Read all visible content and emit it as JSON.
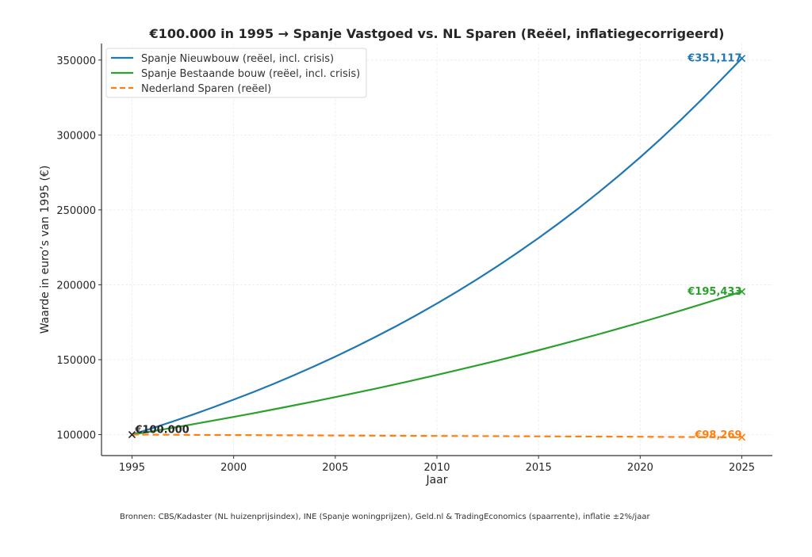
{
  "chart_data": {
    "type": "line",
    "title": "€100.000 in 1995 → Spanje Vastgoed vs. NL Sparen (Reëel, inflatiegecorrigeerd)",
    "xlabel": "Jaar",
    "ylabel": "Waarde in euro’s van 1995 (€)",
    "xlim": [
      1993.5,
      2026.5
    ],
    "ylim": [
      86000,
      361000
    ],
    "xticks": [
      1995,
      2000,
      2005,
      2010,
      2015,
      2020,
      2025
    ],
    "yticks": [
      100000,
      150000,
      200000,
      250000,
      300000,
      350000
    ],
    "xtick_labels": [
      "1995",
      "2000",
      "2005",
      "2010",
      "2015",
      "2020",
      "2025"
    ],
    "ytick_labels": [
      "100000",
      "150000",
      "200000",
      "250000",
      "300000",
      "350000"
    ],
    "grid": true,
    "legend_position": "top-left",
    "x": [
      1995,
      1996,
      1997,
      1998,
      1999,
      2000,
      2001,
      2002,
      2003,
      2004,
      2005,
      2006,
      2007,
      2008,
      2009,
      2010,
      2011,
      2012,
      2013,
      2014,
      2015,
      2016,
      2017,
      2018,
      2019,
      2020,
      2021,
      2022,
      2023,
      2024,
      2025
    ],
    "series": [
      {
        "name": "Spanje Nieuwbouw (reëel, incl. crisis)",
        "color": "#1f77b4",
        "style": "solid",
        "values": [
          100000,
          104280,
          108744,
          113398,
          118252,
          123313,
          128591,
          134095,
          139834,
          145819,
          152060,
          158568,
          165355,
          172432,
          179812,
          187508,
          195534,
          203903,
          212630,
          221730,
          231221,
          241117,
          251437,
          262199,
          273421,
          285124,
          297327,
          310053,
          323324,
          337162,
          351117
        ]
      },
      {
        "name": "Spanje Bestaande bouw (reëel, incl. crisis)",
        "color": "#2ca02c",
        "style": "solid",
        "values": [
          100000,
          102260,
          104571,
          106934,
          109351,
          111823,
          114350,
          116934,
          119577,
          122279,
          125043,
          127869,
          130759,
          133714,
          136736,
          139826,
          142986,
          146218,
          149522,
          152902,
          156357,
          159891,
          163505,
          167200,
          170978,
          174843,
          178794,
          182835,
          186967,
          191193,
          195433
        ]
      },
      {
        "name": "Nederland Sparen (reëel)",
        "color": "#ff7f0e",
        "style": "dashed",
        "values": [
          100000,
          99942,
          99884,
          99826,
          99768,
          99710,
          99652,
          99594,
          99537,
          99479,
          99421,
          99364,
          99306,
          99249,
          99191,
          99134,
          99076,
          99019,
          98962,
          98904,
          98847,
          98790,
          98733,
          98676,
          98619,
          98562,
          98505,
          98448,
          98391,
          98326,
          98269
        ]
      }
    ],
    "annotations": [
      {
        "text": "€100.000",
        "x": 1995,
        "y": 100000,
        "color": "#262626"
      },
      {
        "text": "€351,117",
        "x": 2025,
        "y": 351117,
        "color": "#1f77b4"
      },
      {
        "text": "€195,433",
        "x": 2025,
        "y": 195433,
        "color": "#2ca02c"
      },
      {
        "text": "€98,269",
        "x": 2025,
        "y": 98269,
        "color": "#ff7f0e"
      }
    ],
    "start_marker": {
      "x": 1995,
      "y": 100000,
      "color": "#262626"
    },
    "footnote": "Bronnen: CBS/Kadaster (NL huizenprijsindex), INE (Spanje woningprijzen), Geld.nl & TradingEconomics (spaarrente), inflatie ±2%/jaar"
  }
}
